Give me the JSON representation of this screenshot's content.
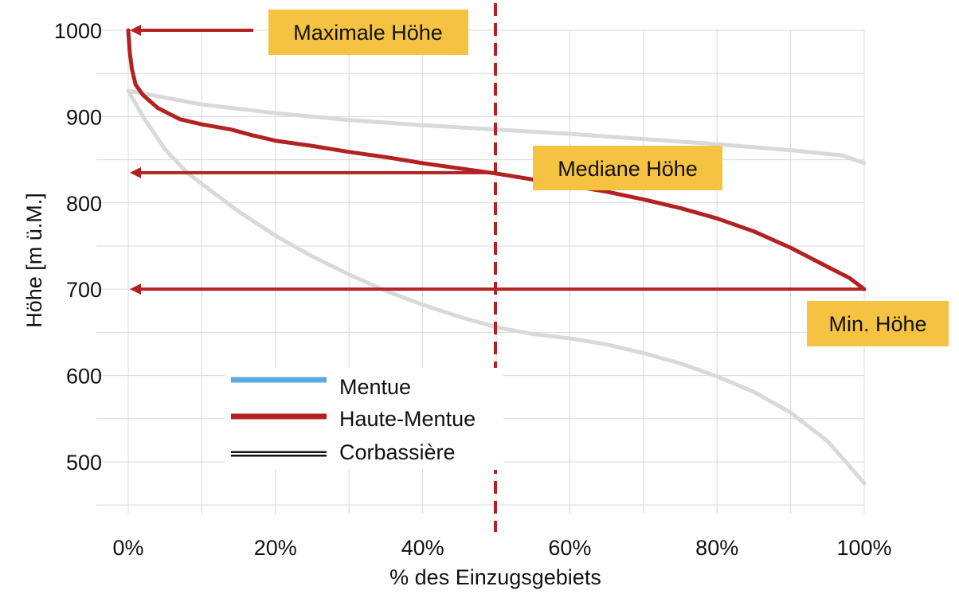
{
  "chart_data": {
    "type": "line",
    "xlabel": "% des Einzugsgebiets",
    "ylabel": "Höhe [m ü.M.]",
    "xlim": [
      0,
      100
    ],
    "ylim": [
      440,
      1000
    ],
    "x_ticks": [
      0,
      20,
      40,
      60,
      80,
      100
    ],
    "x_tick_labels": [
      "0%",
      "20%",
      "40%",
      "60%",
      "80%",
      "100%"
    ],
    "y_ticks": [
      500,
      600,
      700,
      800,
      900,
      1000
    ],
    "y_tick_labels": [
      "500",
      "600",
      "700",
      "800",
      "900",
      "1000"
    ],
    "grid": true,
    "legend_position": "bottom-left",
    "series": [
      {
        "name": "Mentue",
        "color": "#5aa9e0",
        "legend_style": "solid",
        "x": [
          0,
          5,
          10,
          20,
          30,
          40,
          50,
          60,
          70,
          80,
          90,
          97,
          100
        ],
        "y": [
          930,
          922,
          914,
          904,
          896,
          890,
          885,
          880,
          874,
          868,
          861,
          855,
          846
        ]
      },
      {
        "name": "Haute-Mentue",
        "color": "#b22222",
        "legend_style": "solid",
        "x": [
          0,
          0.2,
          0.5,
          1,
          2,
          4,
          7,
          10,
          14,
          17,
          20,
          25,
          30,
          35,
          40,
          45,
          50,
          55,
          60,
          65,
          70,
          75,
          80,
          85,
          90,
          95,
          98,
          100
        ],
        "y": [
          1000,
          975,
          955,
          937,
          925,
          910,
          897,
          891,
          885,
          878,
          872,
          866,
          859,
          853,
          846,
          840,
          834,
          827,
          820,
          813,
          804,
          794,
          782,
          767,
          748,
          726,
          713,
          700
        ]
      },
      {
        "name": "Corbassière",
        "color": "#d9d9d9",
        "legend_style": "double-black",
        "x": [
          0,
          2,
          5,
          8,
          10,
          15,
          20,
          25,
          30,
          35,
          40,
          45,
          50,
          55,
          60,
          65,
          70,
          75,
          80,
          85,
          90,
          95,
          98,
          100
        ],
        "y": [
          930,
          900,
          862,
          835,
          822,
          790,
          762,
          738,
          717,
          698,
          682,
          668,
          656,
          648,
          643,
          636,
          626,
          614,
          599,
          581,
          557,
          524,
          495,
          475
        ]
      }
    ],
    "reference_line": {
      "x": 50,
      "color": "#b22222",
      "style": "dashed"
    },
    "annotations": [
      {
        "text": "Maximale Höhe",
        "arrow_y": 1000,
        "arrow_from_x": 17,
        "arrow_to_x": 0
      },
      {
        "text": "Mediane Höhe",
        "arrow_y": 835,
        "arrow_from_x": 50,
        "arrow_to_x": 0
      },
      {
        "text": "Min. Höhe",
        "arrow_y": 700,
        "arrow_from_x": 100,
        "arrow_to_x": 0
      }
    ],
    "annotation_box_color": "#f5c242",
    "arrow_color": "#b22222"
  }
}
